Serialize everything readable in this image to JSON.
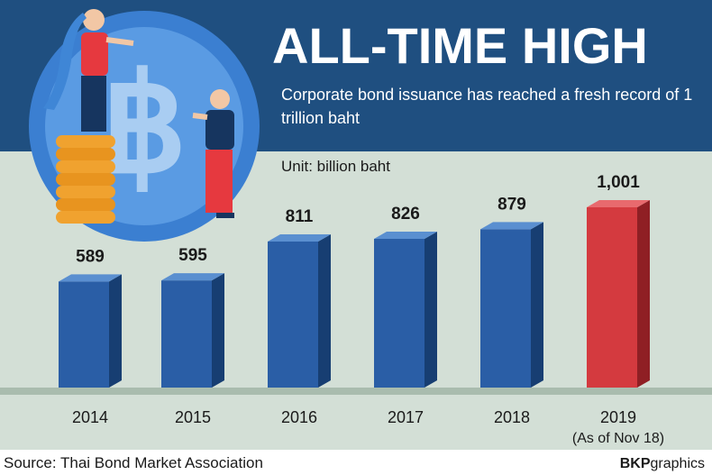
{
  "header": {
    "title": "ALL-TIME HIGH",
    "subtitle": "Corporate bond issuance has reached a fresh record of 1 trillion baht",
    "unit": "Unit: billion baht"
  },
  "footer": {
    "source": "Source: Thai Bond Market Association",
    "credit_bold": "BKP",
    "credit_rest": "graphics"
  },
  "illustration": {
    "coin_symbol": "฿"
  },
  "colors": {
    "header_bg": "#1f4f80",
    "chart_bg": "#d3dfd6",
    "bar_blue": "#2a5ea6",
    "bar_highlight": "#d43a3f"
  },
  "chart_data": {
    "type": "bar",
    "categories": [
      "2014",
      "2015",
      "2016",
      "2017",
      "2018",
      "2019"
    ],
    "category_notes": [
      "",
      "",
      "",
      "",
      "",
      "(As of Nov 18)"
    ],
    "values": [
      589,
      595,
      811,
      826,
      879,
      1001
    ],
    "value_labels": [
      "589",
      "595",
      "811",
      "826",
      "879",
      "1,001"
    ],
    "highlight_index": 5,
    "title": "ALL-TIME HIGH",
    "xlabel": "",
    "ylabel": "",
    "ylim": [
      0,
      1100
    ],
    "grid": false,
    "legend": "none"
  }
}
